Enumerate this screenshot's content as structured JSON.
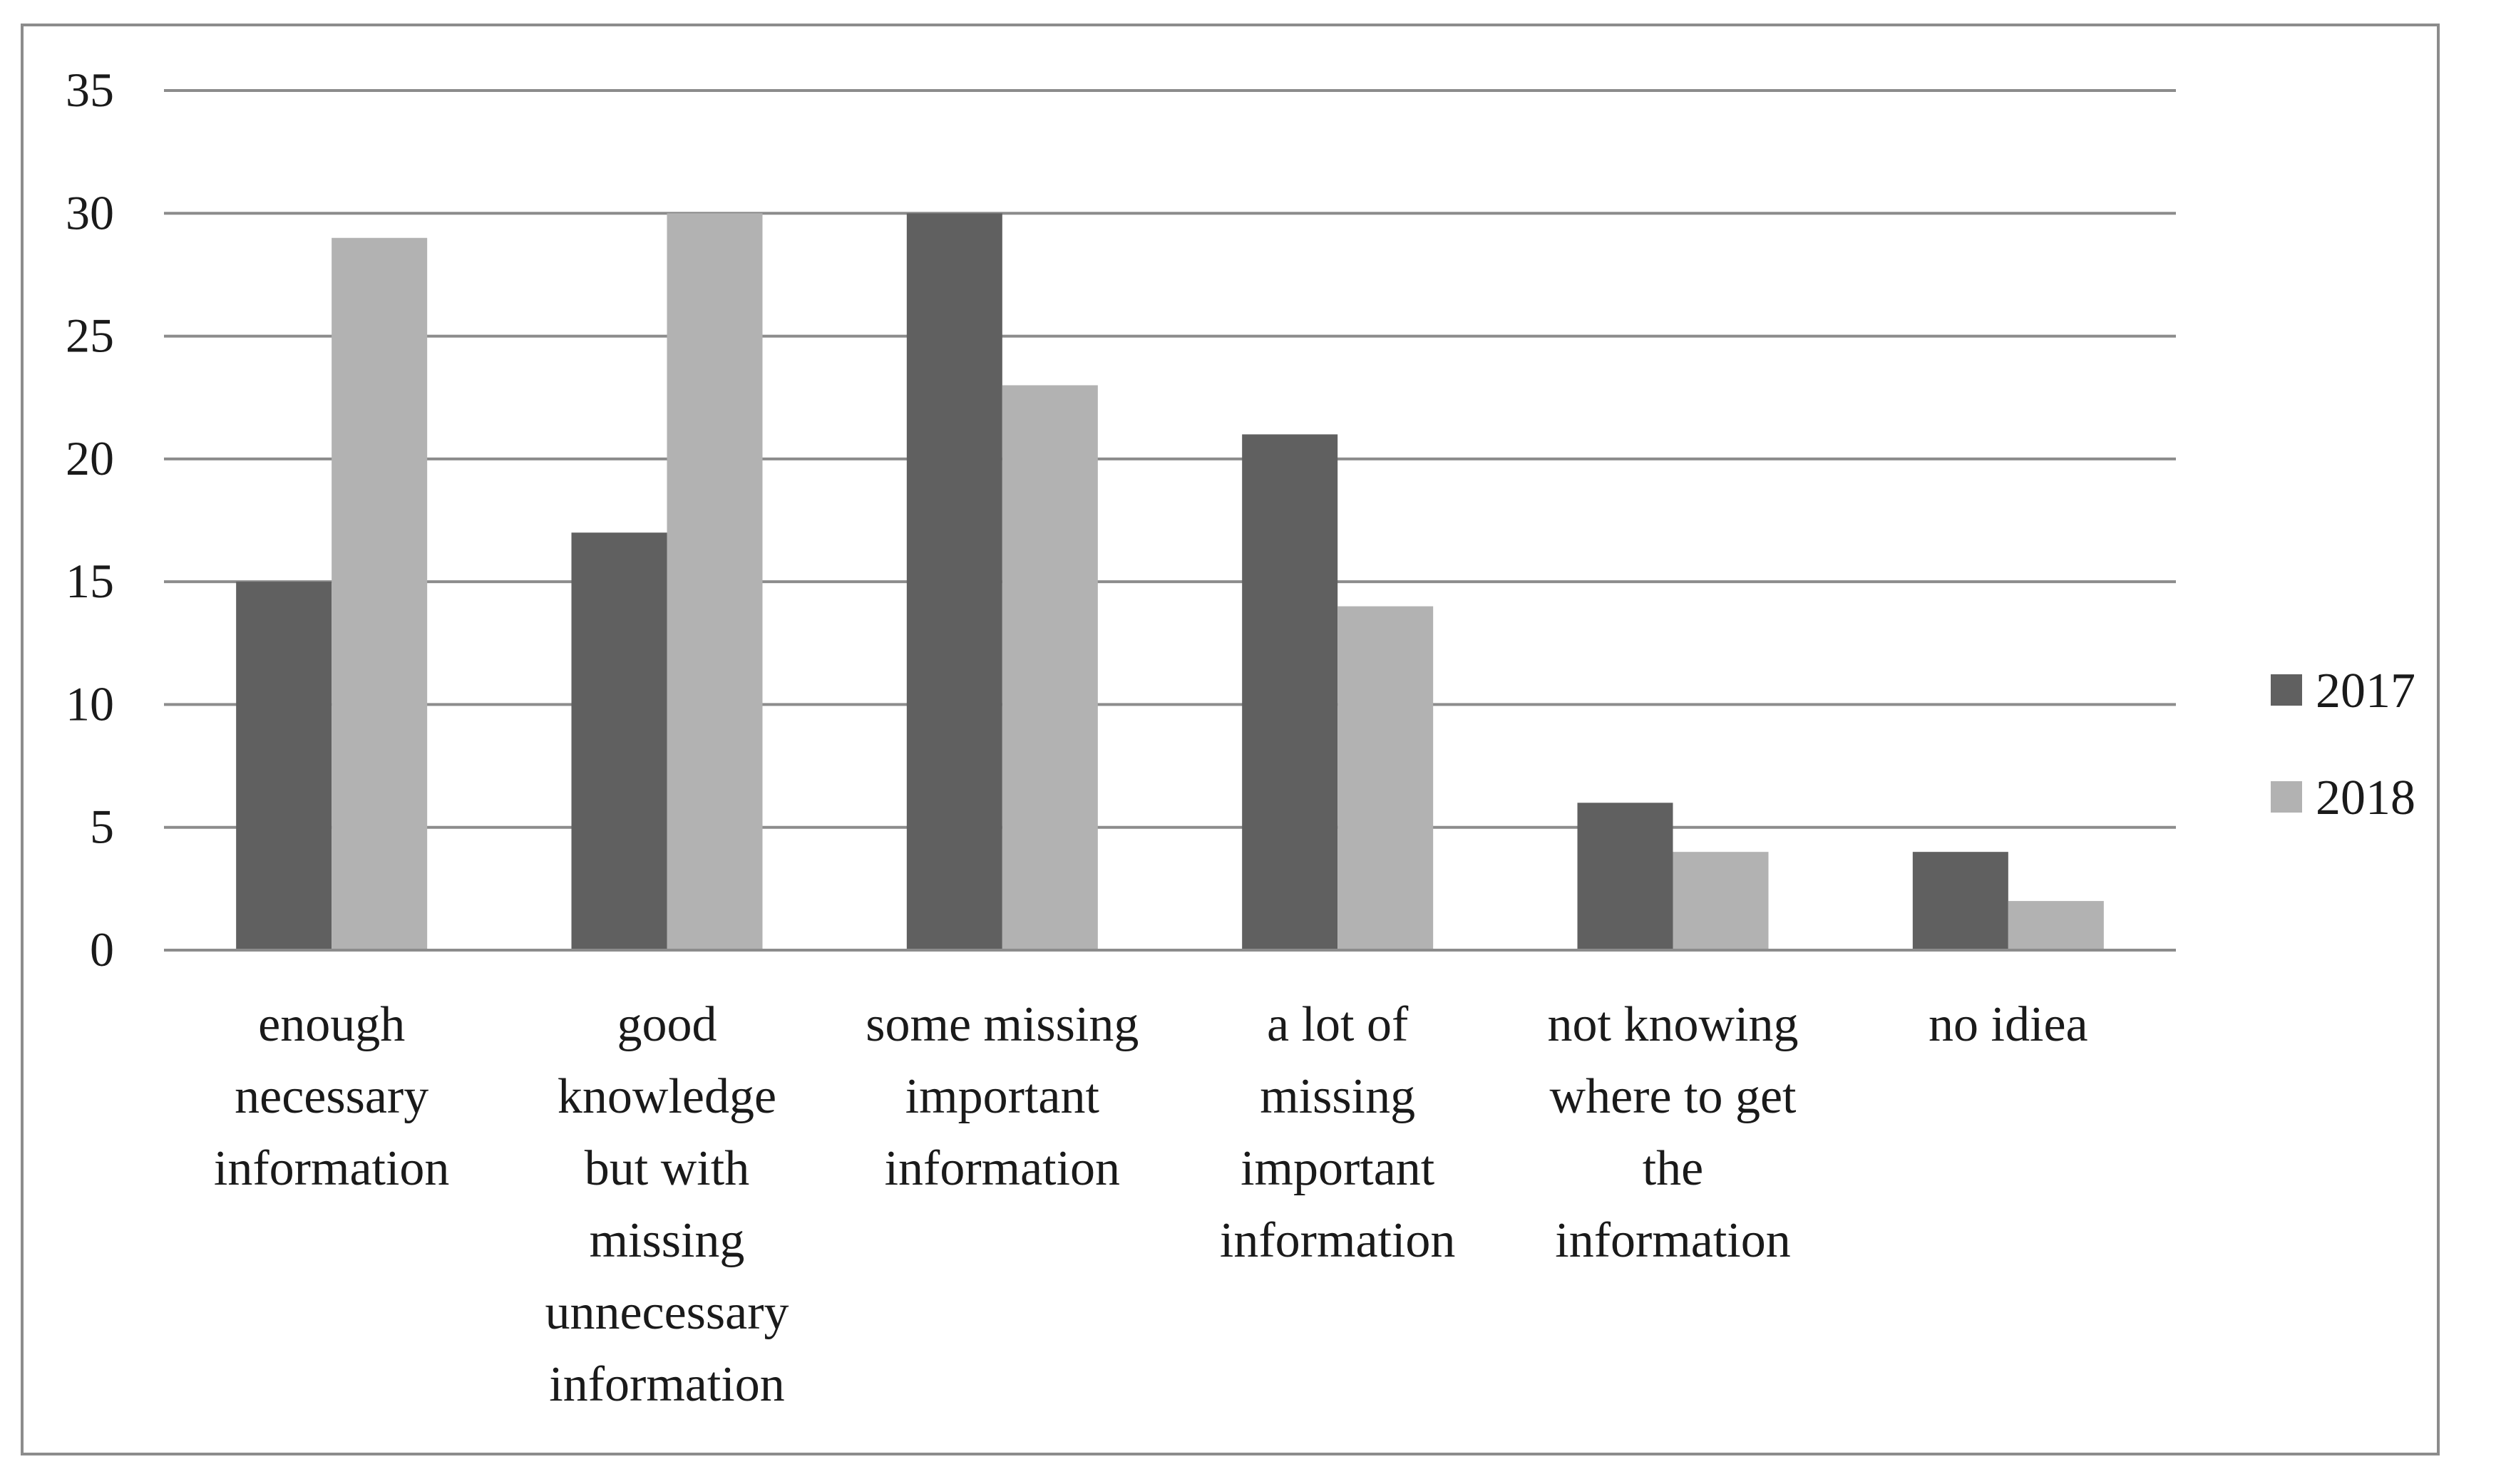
{
  "chart_data": {
    "type": "bar",
    "title": "",
    "xlabel": "",
    "ylabel": "",
    "ylim": [
      0,
      35
    ],
    "yticks": [
      "0",
      "5",
      "10",
      "15",
      "20",
      "25",
      "30",
      "35"
    ],
    "grid": true,
    "legend_position": "right",
    "categories": [
      "enough necessary information",
      "good knowledge but with missing unnecessary information",
      "some missing important information",
      "a lot of missing important information",
      "not knowing where to get the information",
      "no idiea"
    ],
    "category_label_lines": [
      [
        "enough",
        "necessary",
        "information"
      ],
      [
        "good",
        "knowledge",
        "but with",
        "missing",
        "unnecessary",
        "information"
      ],
      [
        "some missing",
        "important",
        "information"
      ],
      [
        "a lot of",
        "missing",
        "important",
        "information"
      ],
      [
        "not knowing",
        "where to get",
        "the",
        "information"
      ],
      [
        "no idiea"
      ]
    ],
    "series": [
      {
        "name": "2017",
        "color": "#606060",
        "values": [
          15,
          17,
          30,
          21,
          6,
          4
        ]
      },
      {
        "name": "2018",
        "color": "#b2b2b2",
        "values": [
          29,
          30,
          23,
          14,
          4,
          2
        ]
      }
    ]
  }
}
